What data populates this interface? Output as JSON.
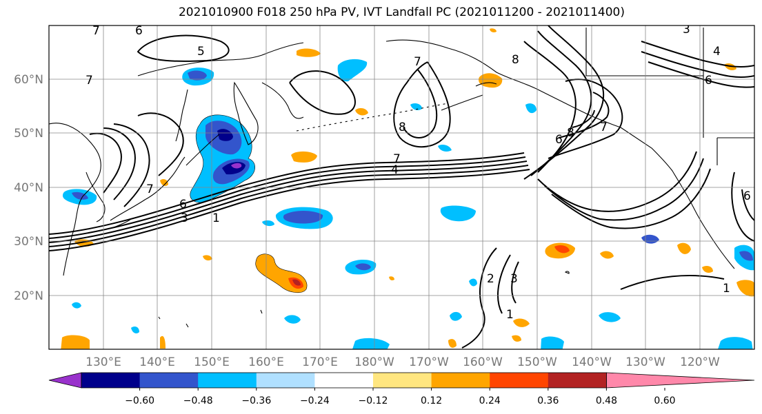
{
  "title": "2021010900 F018 250 hPa PV, IVT Landfall PC (2021011200 - 2021011400)",
  "lat_labels": [
    "60°N",
    "50°N",
    "40°N",
    "30°N",
    "20°N"
  ],
  "lon_labels": [
    "130°E",
    "140°E",
    "150°E",
    "160°E",
    "170°E",
    "180°W",
    "170°W",
    "160°W",
    "150°W",
    "140°W",
    "130°W",
    "120°W"
  ],
  "colorbar": {
    "ticks": [
      "−0.60",
      "−0.48",
      "−0.36",
      "−0.24",
      "−0.12",
      "0.12",
      "0.24",
      "0.36",
      "0.48",
      "0.60"
    ],
    "colors": [
      "#9932cc",
      "#00008b",
      "#3355cc",
      "#00bfff",
      "#b0e0ff",
      "#ffffff",
      "#ffe680",
      "#ffa500",
      "#ff4500",
      "#b22222",
      "#ff88aa"
    ]
  },
  "contour_labels": [
    "5",
    "7",
    "6",
    "7",
    "7",
    "8",
    "7",
    "4",
    "6",
    "3",
    "1",
    "8",
    "6",
    "8",
    "7",
    "2",
    "3",
    "1",
    "1",
    "4",
    "3",
    "6",
    "6",
    "7"
  ]
}
